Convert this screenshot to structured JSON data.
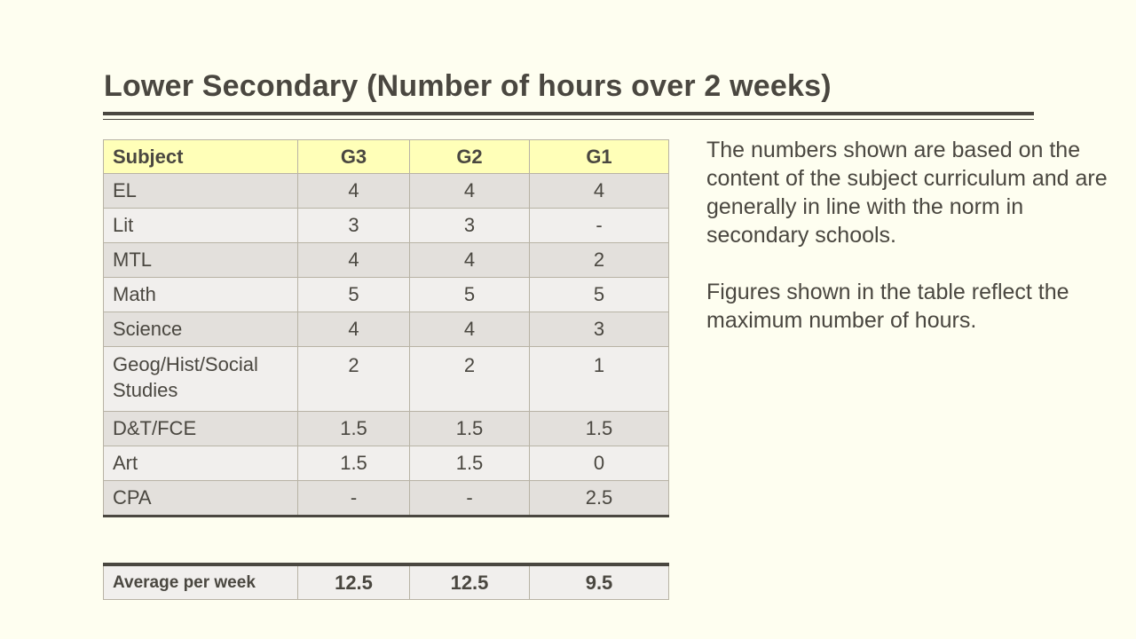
{
  "slide": {
    "title": "Lower Secondary (Number of hours over 2 weeks)"
  },
  "table": {
    "headers": [
      "Subject",
      "G3",
      "G2",
      "G1"
    ],
    "rows": [
      [
        "EL",
        "4",
        "4",
        "4"
      ],
      [
        "Lit",
        "3",
        "3",
        "-"
      ],
      [
        "MTL",
        "4",
        "4",
        "2"
      ],
      [
        "Math",
        "5",
        "5",
        "5"
      ],
      [
        "Science",
        "4",
        "4",
        "3"
      ],
      [
        "Geog/Hist/Social Studies",
        "2",
        "2",
        "1"
      ],
      [
        "D&T/FCE",
        "1.5",
        "1.5",
        "1.5"
      ],
      [
        "Art",
        "1.5",
        "1.5",
        "0"
      ],
      [
        "CPA",
        "-",
        "-",
        "2.5"
      ]
    ]
  },
  "average": {
    "label": "Average per week",
    "values": [
      "12.5",
      "12.5",
      "9.5"
    ]
  },
  "notes": {
    "paragraph1": "The numbers shown are based on the content of the subject curriculum and are generally in line with the norm in secondary schools.",
    "paragraph2": "Figures shown in the table reflect the maximum number of hours."
  },
  "colors": {
    "background": "#fefef0",
    "header_fill": "#ffffb8",
    "row_dark": "#e3e0dc",
    "row_light": "#f1efed",
    "text": "#4a4740"
  }
}
